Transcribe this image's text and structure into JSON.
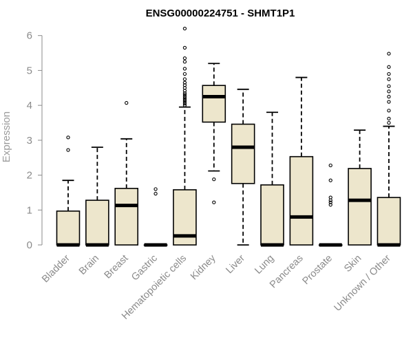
{
  "chart_data": {
    "type": "box",
    "title": "ENSG00000224751 - SHMT1P1",
    "xlabel": "",
    "ylabel": "Expression",
    "ylim": [
      0,
      6.25
    ],
    "yticks": [
      0,
      1,
      2,
      3,
      4,
      5,
      6
    ],
    "grid": false,
    "legend": "none",
    "colors": {
      "box_fill": "#ede6cc",
      "box_stroke": "#000000",
      "median": "#000000",
      "axis": "#8a8a8a",
      "label": "#8a8a8a"
    },
    "categories": [
      "Bladder",
      "Brain",
      "Breast",
      "Gastric",
      "Hematopoietic cells",
      "Kidney",
      "Liver",
      "Lung",
      "Pancreas",
      "Prostate",
      "Skin",
      "Unknown / Other"
    ],
    "boxes": [
      {
        "category": "Bladder",
        "q1": 0,
        "median": 0,
        "q3": 0.97,
        "whisker_low": 0,
        "whisker_high": 1.85,
        "outliers": [
          2.72,
          3.08
        ]
      },
      {
        "category": "Brain",
        "q1": 0,
        "median": 0,
        "q3": 1.28,
        "whisker_low": 0,
        "whisker_high": 2.8,
        "outliers": []
      },
      {
        "category": "Breast",
        "q1": 0,
        "median": 1.13,
        "q3": 1.62,
        "whisker_low": 0,
        "whisker_high": 3.04,
        "outliers": [
          4.07
        ]
      },
      {
        "category": "Gastric",
        "q1": 0,
        "median": 0,
        "q3": 0,
        "whisker_low": 0,
        "whisker_high": 0,
        "outliers": [
          1.47,
          1.6
        ]
      },
      {
        "category": "Hematopoietic cells",
        "q1": 0,
        "median": 0.26,
        "q3": 1.58,
        "whisker_low": 0,
        "whisker_high": 3.95,
        "outliers": [
          4.0,
          4.05,
          4.1,
          4.15,
          4.2,
          4.25,
          4.3,
          4.35,
          4.42,
          4.5,
          4.58,
          4.65,
          4.75,
          4.9,
          5.05,
          5.25,
          5.35,
          5.65,
          6.2
        ]
      },
      {
        "category": "Kidney",
        "q1": 3.52,
        "median": 4.25,
        "q3": 4.57,
        "whisker_low": 2.12,
        "whisker_high": 5.2,
        "outliers": [
          1.88,
          1.22
        ]
      },
      {
        "category": "Liver",
        "q1": 1.76,
        "median": 2.8,
        "q3": 3.46,
        "whisker_low": 0,
        "whisker_high": 4.46,
        "outliers": []
      },
      {
        "category": "Lung",
        "q1": 0,
        "median": 0,
        "q3": 1.72,
        "whisker_low": 0,
        "whisker_high": 3.8,
        "outliers": []
      },
      {
        "category": "Pancreas",
        "q1": 0,
        "median": 0.8,
        "q3": 2.53,
        "whisker_low": 0,
        "whisker_high": 4.8,
        "outliers": []
      },
      {
        "category": "Prostate",
        "q1": 0,
        "median": 0,
        "q3": 0,
        "whisker_low": 0,
        "whisker_high": 0,
        "outliers": [
          1.15,
          1.22,
          1.28,
          1.36,
          1.85,
          2.28
        ]
      },
      {
        "category": "Skin",
        "q1": 0,
        "median": 1.28,
        "q3": 2.19,
        "whisker_low": 0,
        "whisker_high": 3.29,
        "outliers": []
      },
      {
        "category": "Unknown / Other",
        "q1": 0,
        "median": 0,
        "q3": 1.36,
        "whisker_low": 0,
        "whisker_high": 3.4,
        "outliers": [
          3.5,
          3.62,
          3.85,
          4.1,
          4.25,
          4.4,
          4.55,
          4.75,
          4.9,
          5.1,
          5.48
        ]
      }
    ]
  }
}
